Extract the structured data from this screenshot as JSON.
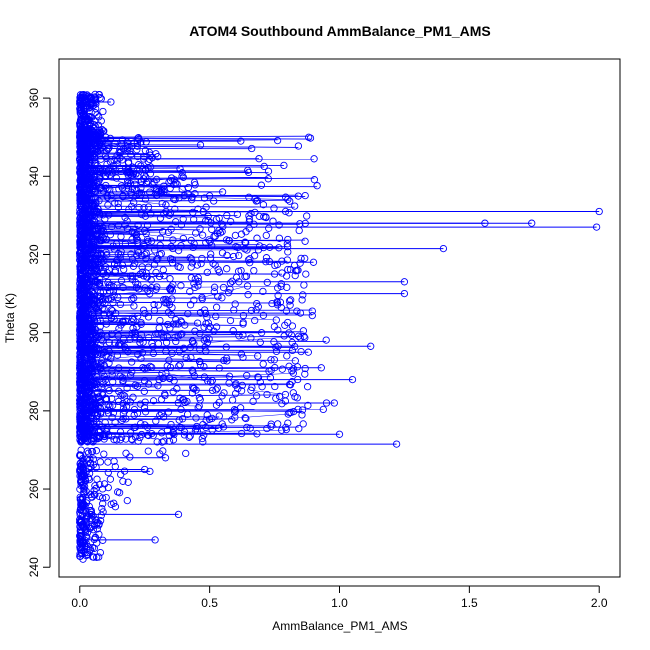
{
  "chart_data": {
    "type": "scatter",
    "title": "ATOM4 Southbound AmmBalance_PM1_AMS",
    "xlabel": "AmmBalance_PM1_AMS",
    "ylabel": "Theta (K)",
    "xlim": [
      -0.08,
      2.08
    ],
    "ylim": [
      237.5,
      370
    ],
    "x_ticks": [
      0,
      0.5,
      1,
      1.5,
      2
    ],
    "x_tick_labels": [
      "0.0",
      "0.5",
      "1.0",
      "1.5",
      "2.0"
    ],
    "y_ticks": [
      240,
      260,
      280,
      300,
      320,
      340,
      360
    ],
    "y_tick_labels": [
      "240",
      "260",
      "280",
      "300",
      "320",
      "340",
      "360"
    ],
    "grid": false,
    "marker": "open-circle",
    "connected": true,
    "series_color": "#0000ff",
    "series": [
      {
        "note_values_are_representative_sample": true,
        "x": [
          2.0,
          1.99,
          1.74,
          1.56,
          1.4,
          1.25,
          1.25,
          1.22,
          1.0,
          0.95,
          0.93,
          0.65,
          0.62,
          0.69,
          0.55,
          0.38,
          0.29,
          0.27,
          0.25,
          0.12,
          0.06,
          0.05,
          0.04,
          0.03,
          0.1,
          0.3,
          0.5,
          0.8,
          0.9,
          0.85,
          0.7,
          0.4,
          0.2,
          0.15,
          0.6,
          0.45,
          0.33,
          1.12,
          1.05,
          0.98,
          0.88,
          0.75
        ],
        "y": [
          331,
          327,
          328,
          328,
          321.5,
          313,
          310,
          271.5,
          274,
          282,
          291,
          341,
          349,
          344.5,
          336,
          253.5,
          247,
          264.5,
          265,
          359,
          360,
          358,
          355,
          352,
          350,
          345,
          335,
          322,
          318,
          305,
          300,
          296,
          290,
          285,
          280,
          276,
          268,
          296.5,
          288,
          282,
          295,
          315
        ]
      }
    ]
  }
}
